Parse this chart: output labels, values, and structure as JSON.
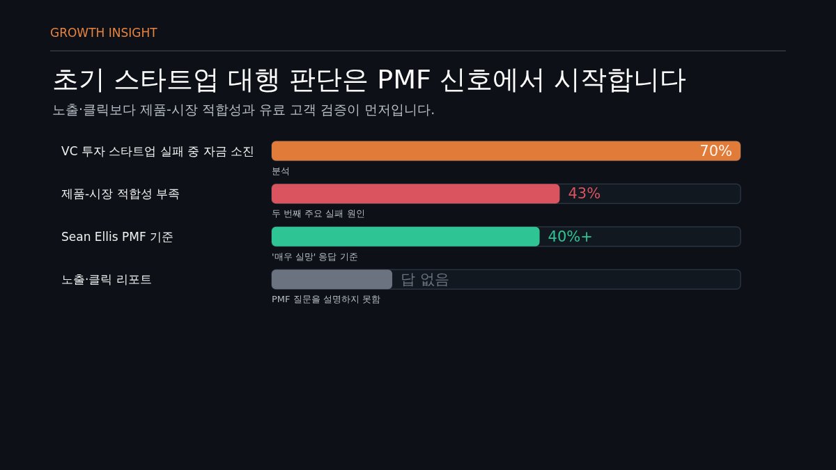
{
  "chart_data": {
    "type": "bar",
    "orientation": "horizontal",
    "title": "초기 스타트업 대행 판단은 PMF 신호에서 시작합니다",
    "subtitle": "노출·클릭보다 제품-시장 적합성과 유료 고객 검증이 먼저입니다.",
    "categories": [
      "VC 투자 스타트업 실패 중 자금 소진",
      "제품-시장 적합성 부족",
      "Sean Ellis PMF 기준",
      "노출·클릭 리포트"
    ],
    "values": [
      70,
      43,
      40,
      18
    ],
    "colors": [
      "#e07b39",
      "#d9545e",
      "#2ec493",
      "#6b7280"
    ],
    "value_labels": [
      "70%",
      "43%",
      "40%+",
      "답 없음"
    ],
    "xlim": [
      0,
      70
    ],
    "tick_labels": "y",
    "annotations": [
      "GROWTH INSIGHT",
      "분석",
      "두 번째 주요 실패 원인",
      "'매우 실망' 응답 기준",
      "PMF 질문을 설명하지 못함"
    ]
  }
}
